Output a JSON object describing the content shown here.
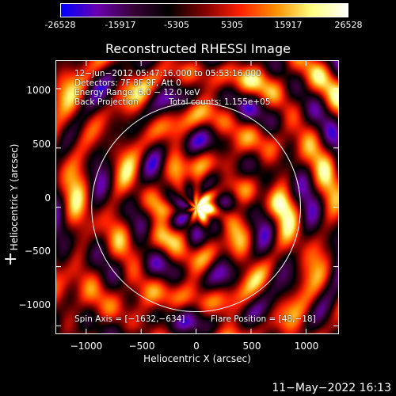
{
  "colorbar": {
    "tick_labels": [
      "-26528",
      "-15917",
      "-5305",
      "5305",
      "15917",
      "26528"
    ],
    "ticks": [
      -26528,
      -15917,
      -5305,
      5305,
      15917,
      26528
    ],
    "min": -26528,
    "max": 26528,
    "colors": [
      "#0000ff",
      "#6a00b0",
      "#3a0038",
      "#000000",
      "#800000",
      "#ff2000",
      "#ff9000",
      "#ffff80",
      "#ffffff"
    ]
  },
  "chart_data": {
    "type": "heatmap",
    "title": "Reconstructed RHESSI Image",
    "xlabel": "Heliocentric X (arcsec)",
    "ylabel": "Heliocentric Y (arcsec)",
    "xlim": [
      -1280,
      1300
    ],
    "ylim": [
      -1070,
      1240
    ],
    "x_ticks": [
      -1000,
      -500,
      0,
      500,
      1000
    ],
    "y_ticks": [
      -1000,
      -500,
      0,
      500,
      1000
    ],
    "x_tick_labels": [
      "−1000",
      "−500",
      "0",
      "500",
      "1000"
    ],
    "y_tick_labels": [
      "−1000",
      "−500",
      "0",
      "500",
      "1000"
    ],
    "solar_limb_radius": 950,
    "grid": false,
    "annotations": {
      "time_range": "12−Jun−2012 05:47:16.000 to 05:53:16.000",
      "detectors": "Detectors: 7F 8F 9F, Att 0",
      "energy_range": "Energy Range: 6.0 − 12.0 keV",
      "method": "Back Projection",
      "total_counts": "Total counts: 1.155e+05",
      "spin_axis": "Spin Axis = [−1632,−634]",
      "flare_position": "Flare Position = [48,−18]"
    }
  },
  "plus_mark": "+",
  "timestamp": "11−May−2022 16:13"
}
